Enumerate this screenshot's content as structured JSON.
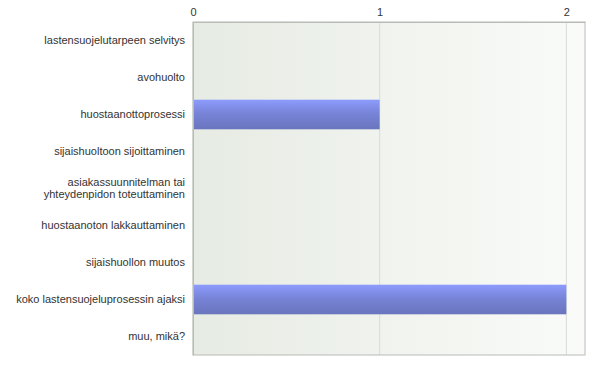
{
  "chart_data": {
    "type": "bar",
    "orientation": "horizontal",
    "categories": [
      "lastensuojelutarpeen selvitys",
      "avohuolto",
      "huostaanottoprosessi",
      "sijaishuoltoon sijoittaminen",
      "asiakassuunnitelman tai yhteydenpidon toteuttaminen",
      "huostaanoton lakkauttaminen",
      "sijaishuollon muutos",
      "koko lastensuojeluprosessin ajaksi",
      "muu, mikä?"
    ],
    "values": [
      0,
      0,
      1,
      0,
      0,
      0,
      0,
      2,
      0
    ],
    "color": "#7682d4",
    "xlim": [
      0,
      2.1
    ],
    "xticks": [
      0,
      1,
      2
    ],
    "grid": true
  }
}
